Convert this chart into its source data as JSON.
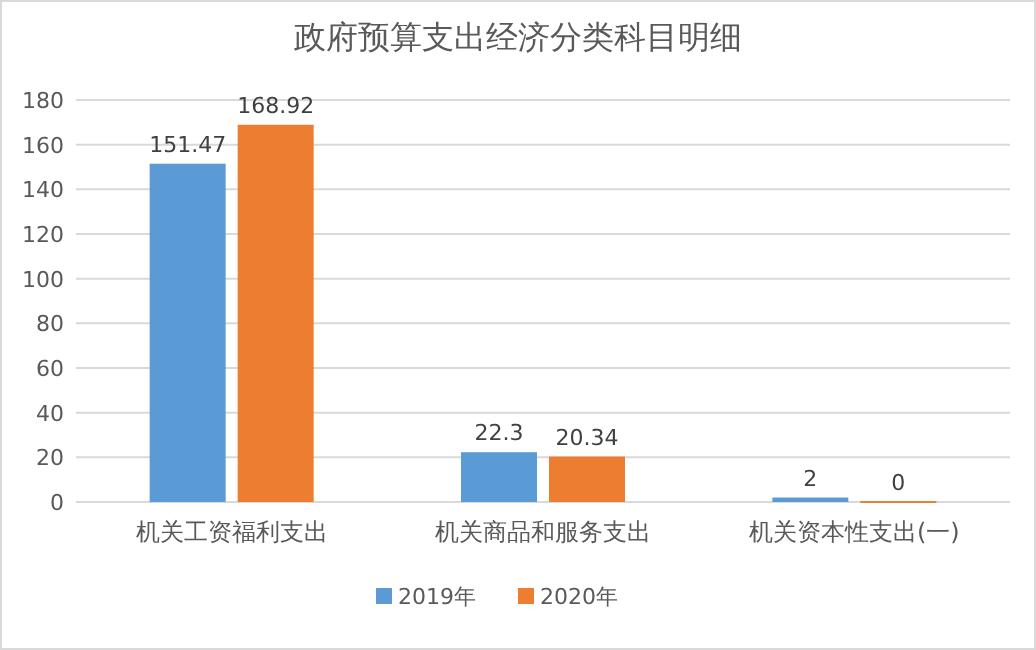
{
  "chart_data": {
    "type": "bar",
    "title": "政府预算支出经济分类科目明细",
    "categories": [
      "机关工资福利支出",
      "机关商品和服务支出",
      "机关资本性支出(一)"
    ],
    "series": [
      {
        "name": "2019年",
        "color": "#5b9bd5",
        "values": [
          151.47,
          22.3,
          2
        ]
      },
      {
        "name": "2020年",
        "color": "#ed7d31",
        "values": [
          168.92,
          20.34,
          0
        ]
      }
    ],
    "ylim": [
      0,
      180
    ],
    "yticks": [
      0,
      20,
      40,
      60,
      80,
      100,
      120,
      140,
      160,
      180
    ],
    "grid": "y",
    "legend": "bottom",
    "data_labels": true
  }
}
